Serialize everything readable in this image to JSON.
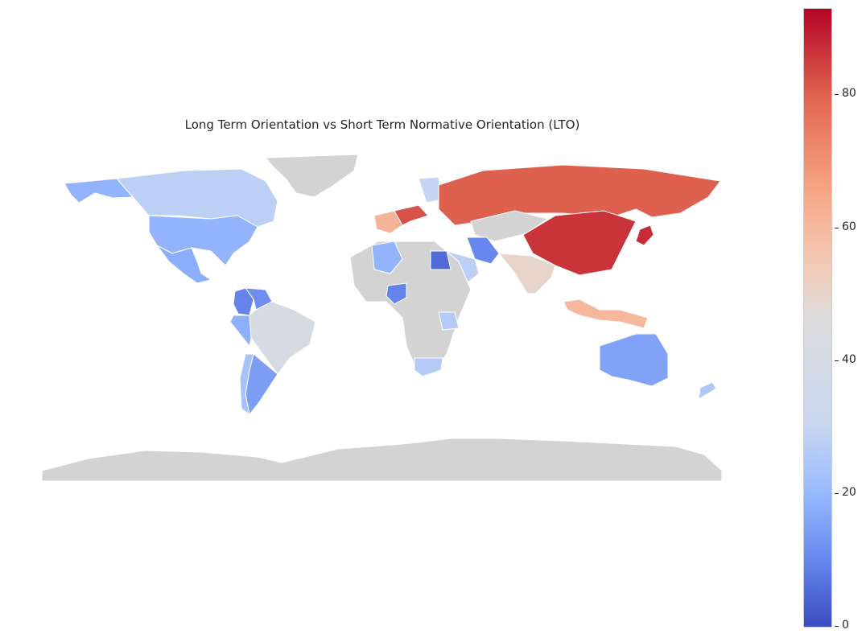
{
  "title": "Long Term Orientation vs Short Term Normative Orientation (LTO)",
  "colorbar": {
    "min": 0,
    "max": 93,
    "ticks": [
      {
        "label": "0",
        "v": 0
      },
      {
        "label": "20",
        "v": 20
      },
      {
        "label": "40",
        "v": 40
      },
      {
        "label": "60",
        "v": 60
      },
      {
        "label": "80",
        "v": 80
      }
    ],
    "colormap": "coolwarm"
  },
  "missing_color": "#d3d3d3",
  "regions": [
    {
      "name": "Greenland",
      "value": null
    },
    {
      "name": "Canada",
      "value": 36
    },
    {
      "name": "Alaska",
      "value": 26
    },
    {
      "name": "United States",
      "value": 26
    },
    {
      "name": "Mexico",
      "value": 24
    },
    {
      "name": "Colombia",
      "value": 13
    },
    {
      "name": "Venezuela",
      "value": 16
    },
    {
      "name": "Peru",
      "value": 25
    },
    {
      "name": "Brazil",
      "value": 44
    },
    {
      "name": "Argentina",
      "value": 20
    },
    {
      "name": "Chile",
      "value": 31
    },
    {
      "name": "Russia",
      "value": 81
    },
    {
      "name": "China",
      "value": 87
    },
    {
      "name": "Japan",
      "value": 88
    },
    {
      "name": "India",
      "value": 51
    },
    {
      "name": "Iran",
      "value": 14
    },
    {
      "name": "Saudi Arabia",
      "value": 36
    },
    {
      "name": "Egypt",
      "value": 7
    },
    {
      "name": "Algeria",
      "value": 26
    },
    {
      "name": "Nigeria",
      "value": 13
    },
    {
      "name": "Tanzania",
      "value": 34
    },
    {
      "name": "South Africa",
      "value": 34
    },
    {
      "name": "Indonesia",
      "value": 62
    },
    {
      "name": "Australia",
      "value": 21
    },
    {
      "name": "New Zealand",
      "value": 33
    },
    {
      "name": "France",
      "value": 63
    },
    {
      "name": "Germany",
      "value": 83
    },
    {
      "name": "Finland",
      "value": 38
    },
    {
      "name": "Kazakhstan",
      "value": null
    },
    {
      "name": "Africa (no data)",
      "value": null
    },
    {
      "name": "Antarctica",
      "value": null
    }
  ]
}
